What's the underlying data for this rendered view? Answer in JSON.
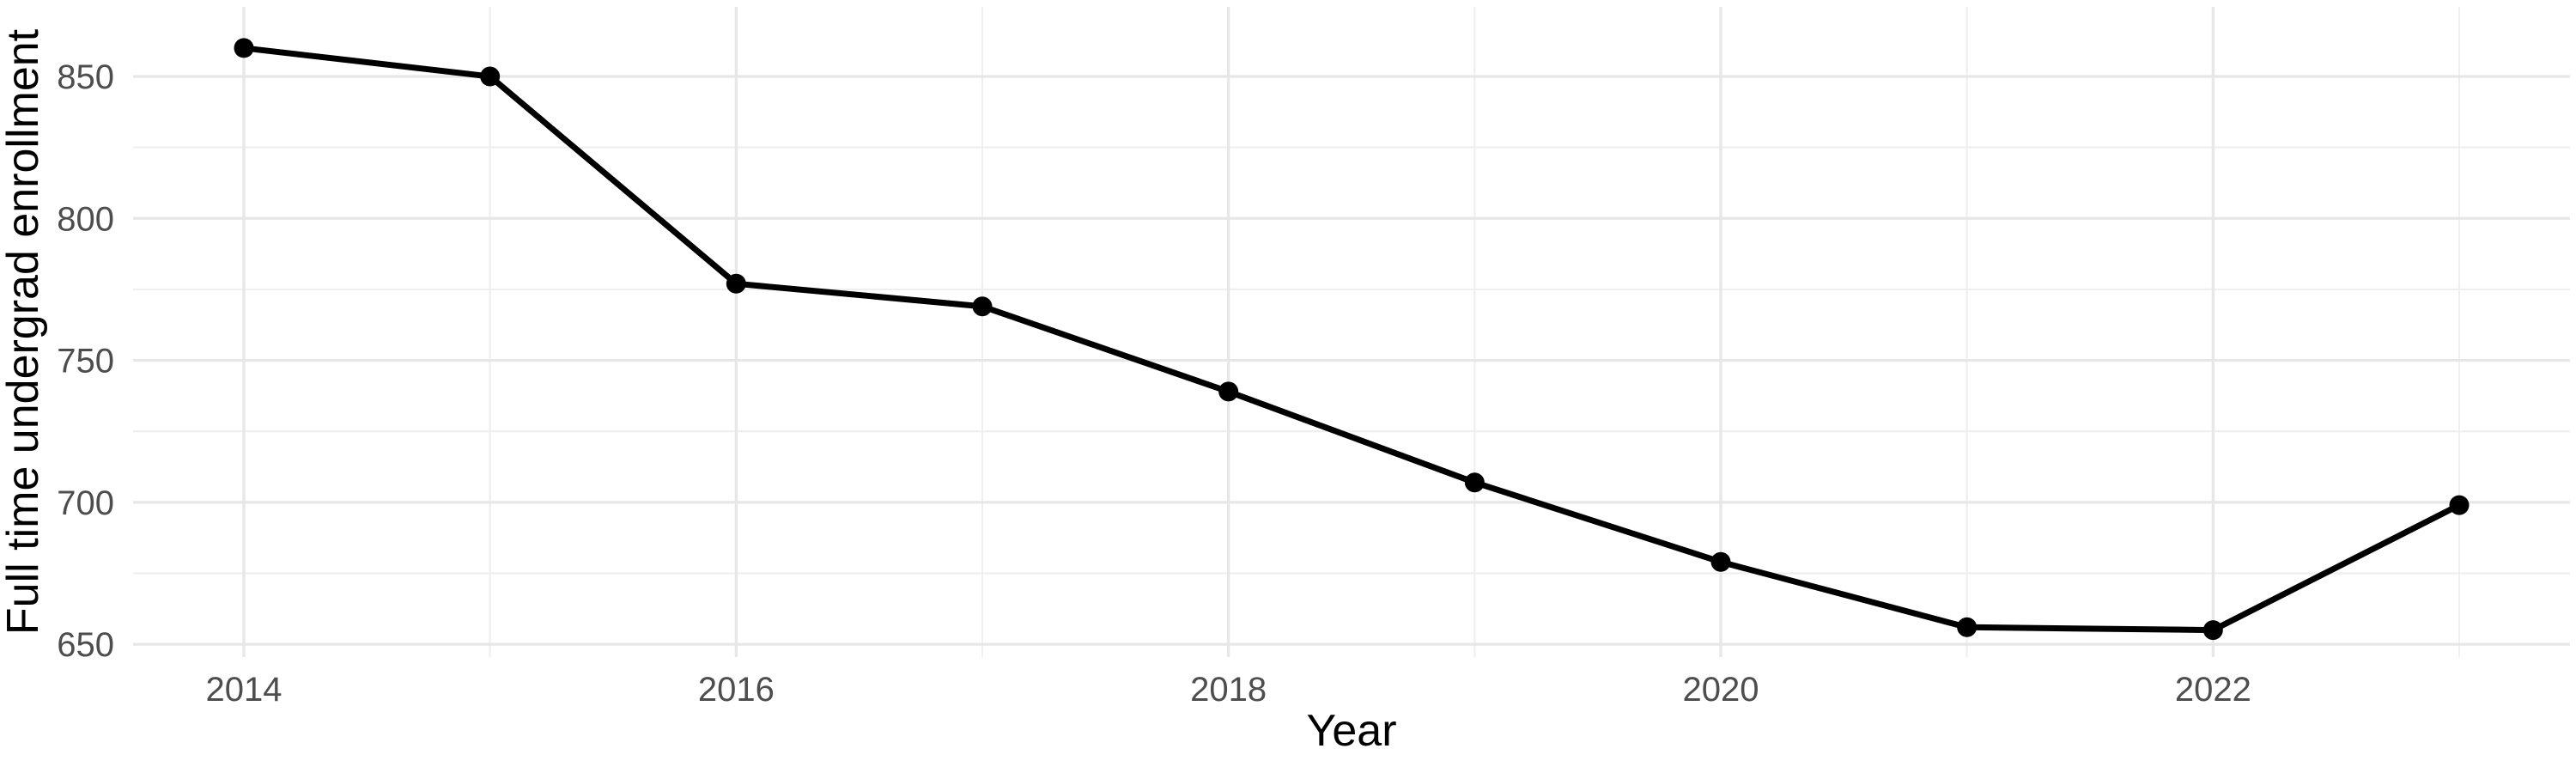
{
  "chart_data": {
    "type": "line",
    "title": "",
    "xlabel": "Year",
    "ylabel": "Full time undergrad enrollment",
    "x": [
      2014,
      2015,
      2016,
      2017,
      2018,
      2019,
      2020,
      2021,
      2022,
      2023
    ],
    "series": [
      {
        "name": "Full time undergrad enrollment",
        "values": [
          860,
          850,
          777,
          769,
          739,
          707,
          679,
          656,
          655,
          699
        ]
      }
    ],
    "x_major_ticks": [
      2014,
      2016,
      2018,
      2020,
      2022
    ],
    "x_minor_gridlines": [
      2015,
      2017,
      2019,
      2021,
      2023
    ],
    "y_ticks": [
      650,
      700,
      750,
      800,
      850
    ],
    "y_minor_gridlines": [
      675,
      725,
      775,
      825
    ],
    "xlim": [
      2013.55,
      2023.45
    ],
    "ylim": [
      645.5,
      874.5
    ],
    "grid": true,
    "legend_position": "none",
    "point_marker": "filled-circle",
    "colors": {
      "line": "#000000",
      "point": "#000000",
      "grid_major": "#e7e7e7",
      "grid_minor": "#efefef",
      "tick_text": "#4d4d4d",
      "axis_title_text": "#000000",
      "background": "#ffffff"
    }
  }
}
